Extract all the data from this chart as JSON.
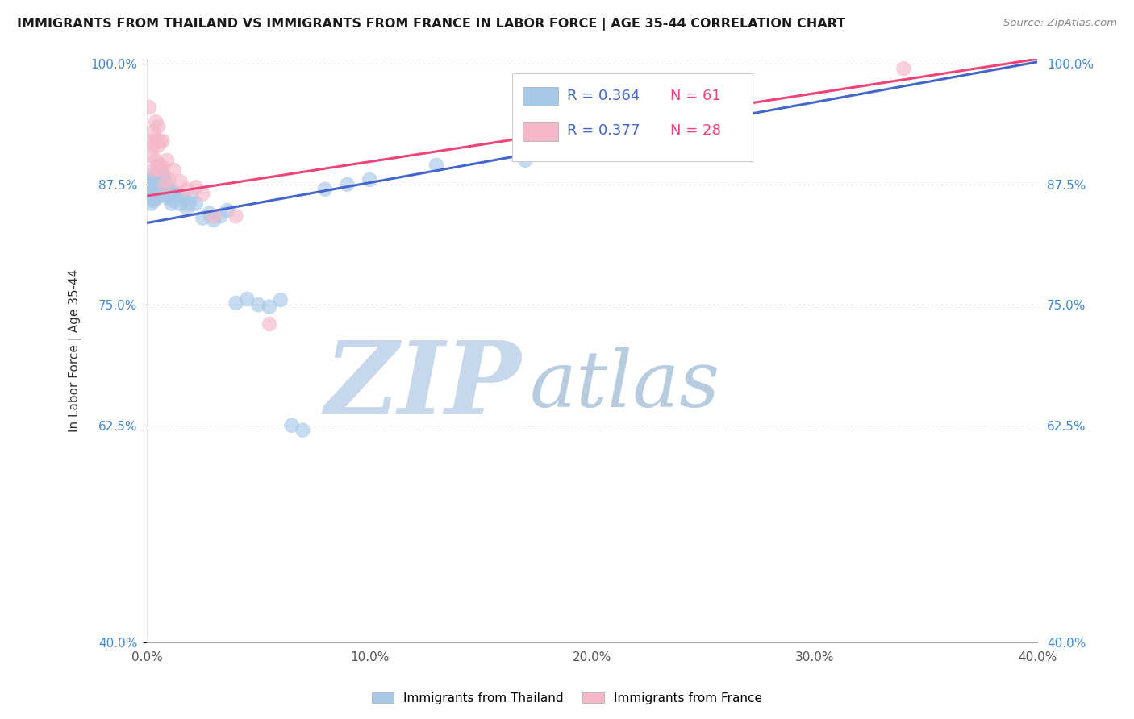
{
  "title": "IMMIGRANTS FROM THAILAND VS IMMIGRANTS FROM FRANCE IN LABOR FORCE | AGE 35-44 CORRELATION CHART",
  "source": "Source: ZipAtlas.com",
  "ylabel": "In Labor Force | Age 35-44",
  "xmin": 0.0,
  "xmax": 0.4,
  "ymin": 0.4,
  "ymax": 1.005,
  "xticks": [
    0.0,
    0.05,
    0.1,
    0.15,
    0.2,
    0.25,
    0.3,
    0.35,
    0.4
  ],
  "xticklabels": [
    "0.0%",
    "",
    "10.0%",
    "",
    "20.0%",
    "",
    "30.0%",
    "",
    "40.0%"
  ],
  "yticks": [
    0.4,
    0.625,
    0.75,
    0.875,
    1.0
  ],
  "yticklabels": [
    "40.0%",
    "62.5%",
    "75.0%",
    "87.5%",
    "100.0%"
  ],
  "grid_color": "#cccccc",
  "background_color": "#ffffff",
  "thailand_color": "#a8c8e8",
  "france_color": "#f4b8c8",
  "thailand_line_color": "#4466cc",
  "france_line_color": "#ee4477",
  "thailand_R": 0.364,
  "thailand_N": 61,
  "france_R": 0.377,
  "france_N": 28,
  "legend_R_color": "#4466cc",
  "legend_N_color": "#ee4477",
  "watermark_zip": "ZIP",
  "watermark_atlas": "atlas",
  "watermark_color_zip": "#c8d8ec",
  "watermark_color_atlas": "#b8cce0",
  "thailand_x": [
    0.001,
    0.001,
    0.001,
    0.002,
    0.002,
    0.002,
    0.002,
    0.003,
    0.003,
    0.003,
    0.003,
    0.003,
    0.004,
    0.004,
    0.004,
    0.004,
    0.005,
    0.005,
    0.005,
    0.005,
    0.005,
    0.006,
    0.006,
    0.006,
    0.007,
    0.007,
    0.007,
    0.008,
    0.008,
    0.009,
    0.009,
    0.01,
    0.01,
    0.011,
    0.011,
    0.012,
    0.013,
    0.014,
    0.015,
    0.016,
    0.018,
    0.019,
    0.02,
    0.022,
    0.025,
    0.028,
    0.03,
    0.033,
    0.036,
    0.04,
    0.045,
    0.05,
    0.055,
    0.06,
    0.065,
    0.07,
    0.08,
    0.09,
    0.1,
    0.13,
    0.17
  ],
  "thailand_y": [
    0.88,
    0.872,
    0.865,
    0.878,
    0.87,
    0.86,
    0.855,
    0.882,
    0.875,
    0.87,
    0.862,
    0.858,
    0.888,
    0.878,
    0.87,
    0.86,
    0.895,
    0.885,
    0.878,
    0.87,
    0.862,
    0.89,
    0.882,
    0.875,
    0.885,
    0.878,
    0.87,
    0.88,
    0.872,
    0.875,
    0.865,
    0.87,
    0.86,
    0.868,
    0.855,
    0.858,
    0.862,
    0.865,
    0.855,
    0.86,
    0.85,
    0.855,
    0.862,
    0.855,
    0.84,
    0.845,
    0.838,
    0.842,
    0.848,
    0.752,
    0.756,
    0.75,
    0.748,
    0.755,
    0.625,
    0.62,
    0.87,
    0.875,
    0.88,
    0.895,
    0.9
  ],
  "france_x": [
    0.001,
    0.002,
    0.002,
    0.003,
    0.003,
    0.003,
    0.004,
    0.004,
    0.004,
    0.005,
    0.005,
    0.005,
    0.006,
    0.006,
    0.007,
    0.007,
    0.008,
    0.009,
    0.01,
    0.012,
    0.015,
    0.018,
    0.022,
    0.025,
    0.03,
    0.04,
    0.055,
    0.34
  ],
  "france_y": [
    0.955,
    0.92,
    0.905,
    0.93,
    0.915,
    0.89,
    0.94,
    0.92,
    0.9,
    0.935,
    0.915,
    0.89,
    0.92,
    0.895,
    0.92,
    0.892,
    0.875,
    0.9,
    0.88,
    0.89,
    0.878,
    0.87,
    0.872,
    0.865,
    0.842,
    0.842,
    0.73,
    0.995
  ],
  "th_line_x0": 0.0,
  "th_line_x1": 0.4,
  "th_line_y0": 0.835,
  "th_line_y1": 1.002,
  "fr_line_x0": 0.0,
  "fr_line_x1": 0.4,
  "fr_line_y0": 0.863,
  "fr_line_y1": 1.005
}
